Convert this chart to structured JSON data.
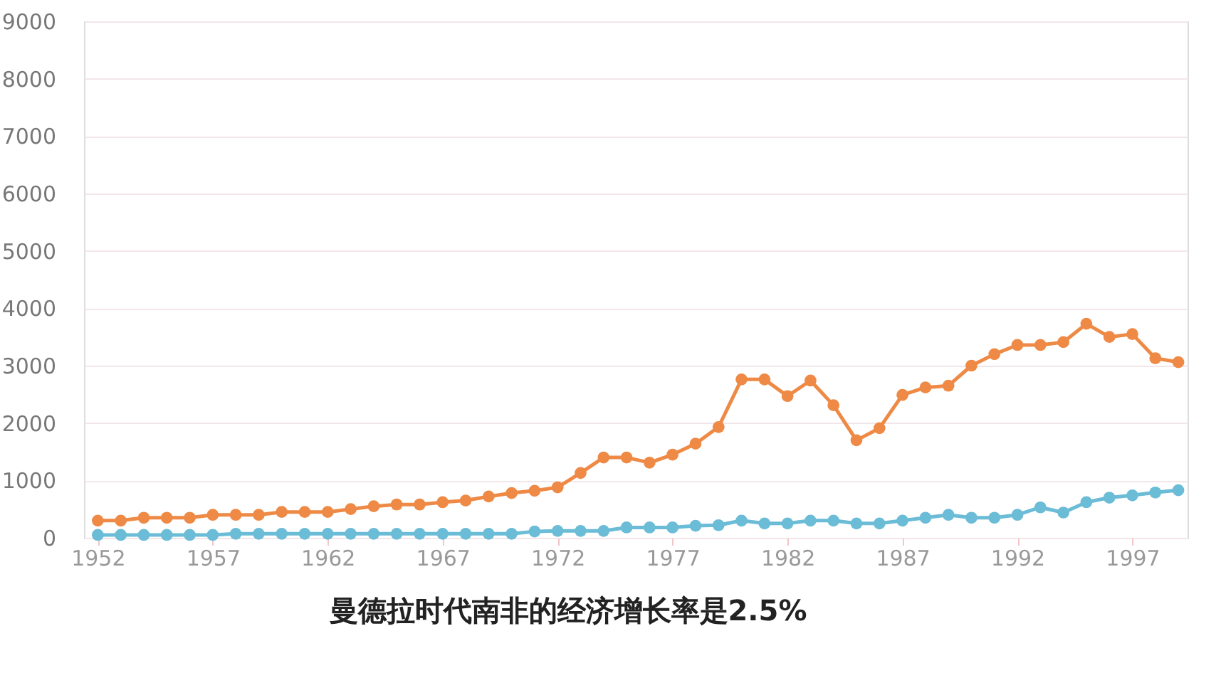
{
  "chart_data": {
    "type": "line",
    "x": [
      1952,
      1953,
      1954,
      1955,
      1956,
      1957,
      1958,
      1959,
      1960,
      1961,
      1962,
      1963,
      1964,
      1965,
      1966,
      1967,
      1968,
      1969,
      1970,
      1971,
      1972,
      1973,
      1974,
      1975,
      1976,
      1977,
      1978,
      1979,
      1980,
      1981,
      1982,
      1983,
      1984,
      1985,
      1986,
      1987,
      1988,
      1989,
      1990,
      1991,
      1992,
      1993,
      1994,
      1995,
      1996,
      1997,
      1998,
      1999
    ],
    "series": [
      {
        "color": "#ee8a45",
        "values": [
          300,
          300,
          350,
          350,
          350,
          400,
          400,
          400,
          450,
          450,
          450,
          500,
          550,
          580,
          580,
          620,
          650,
          720,
          780,
          820,
          880,
          1130,
          1400,
          1400,
          1310,
          1450,
          1640,
          1930,
          2760,
          2760,
          2470,
          2740,
          2310,
          1700,
          1910,
          2490,
          2620,
          2650,
          3000,
          3200,
          3360,
          3360,
          3410,
          3730,
          3500,
          3550,
          3130,
          3060
        ]
      },
      {
        "color": "#6bbcd6",
        "values": [
          50,
          50,
          50,
          50,
          50,
          50,
          70,
          70,
          70,
          70,
          70,
          70,
          70,
          70,
          70,
          70,
          70,
          70,
          70,
          110,
          120,
          120,
          120,
          180,
          180,
          180,
          210,
          220,
          300,
          250,
          250,
          300,
          300,
          250,
          250,
          300,
          350,
          400,
          350,
          350,
          400,
          530,
          440,
          620,
          700,
          740,
          790,
          830
        ]
      }
    ],
    "xlim": [
      1951.4,
      1999.4
    ],
    "xticks": [
      1952,
      1957,
      1962,
      1967,
      1972,
      1977,
      1982,
      1987,
      1992,
      1997
    ],
    "ylim": [
      0,
      9000
    ],
    "yticks": [
      0,
      1000,
      2000,
      3000,
      4000,
      5000,
      6000,
      7000,
      8000,
      9000
    ],
    "grid": "y",
    "marker": "circle",
    "line_style": "solid",
    "annotations": [
      "曼德拉时代南非的经济增长率是2.5%"
    ]
  }
}
